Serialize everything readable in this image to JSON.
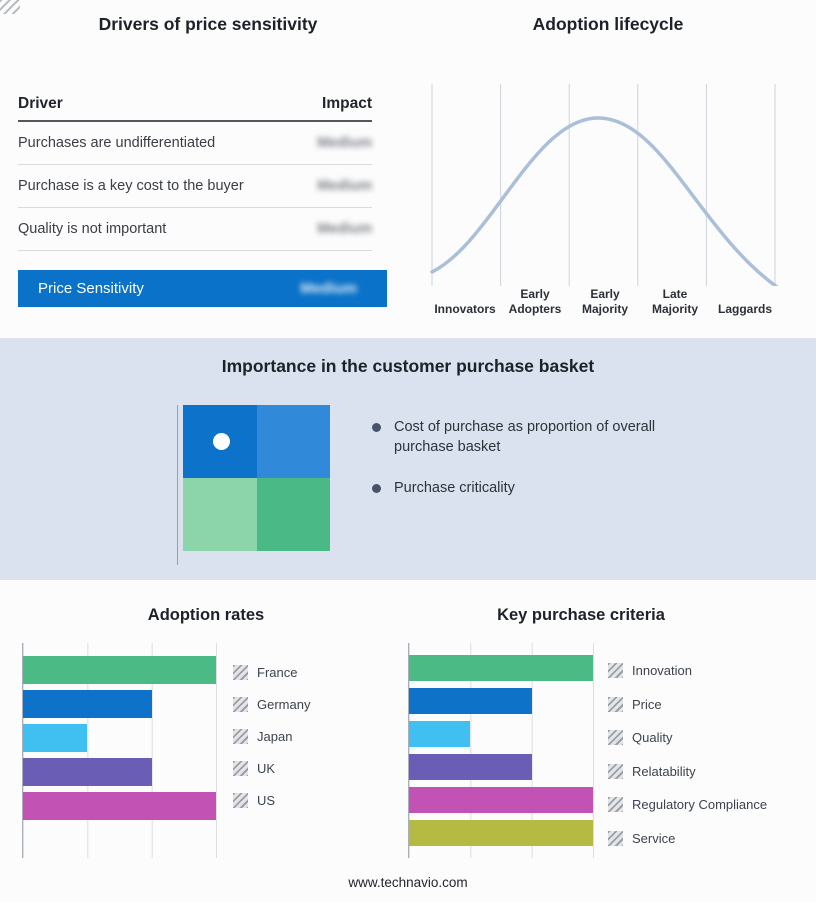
{
  "meta": {
    "footer": "www.technavio.com"
  },
  "drivers_panel": {
    "title": "Drivers of price sensitivity",
    "col_driver": "Driver",
    "col_impact": "Impact",
    "rows": [
      {
        "driver": "Purchases are undifferentiated",
        "impact": "Medium",
        "redacted": true
      },
      {
        "driver": "Purchase is a key cost to the buyer",
        "impact": "Medium",
        "redacted": true
      },
      {
        "driver": "Quality is not important",
        "impact": "Medium",
        "redacted": true
      }
    ],
    "summary": {
      "label": "Price Sensitivity",
      "impact": "Medium",
      "redacted": true,
      "bg_color": "#0a72c8"
    }
  },
  "basket_panel": {
    "title": "Importance in the customer purchase basket",
    "band_color": "#d9e2ee",
    "matrix_colors": {
      "top_left": "#0d72c9",
      "top_right": "#318ad9",
      "bottom_left": "#8cd5ab",
      "bottom_right": "#4bb985"
    },
    "marker_quadrant": "top_left",
    "bullets": [
      "Cost of purchase as proportion of overall purchase basket",
      "Purchase criticality"
    ]
  },
  "chart_data": [
    {
      "id": "adoption_lifecycle",
      "type": "line",
      "title": "Adoption lifecycle",
      "categories": [
        "Innovators",
        "Early Adopters",
        "Early Majority",
        "Late Majority",
        "Laggards"
      ],
      "description": "Bell-shaped adoption curve rising from Innovators, peaking around Early Majority, falling to Laggards",
      "curve_color": "#abbfd9",
      "grid": "vertical segment boundaries, no numeric axes"
    },
    {
      "id": "adoption_rates",
      "type": "bar",
      "title": "Adoption rates",
      "orientation": "horizontal",
      "categories": [
        "France",
        "Germany",
        "Japan",
        "UK",
        "US"
      ],
      "values": [
        3,
        2,
        1,
        2,
        3
      ],
      "xlim": [
        0,
        3
      ],
      "unit": "relative gridline units (axis unlabeled)",
      "colors": [
        "#4cba85",
        "#0e72c8",
        "#3fc0f0",
        "#6a5db6",
        "#c253b4"
      ],
      "legend_position": "right",
      "grid": true
    },
    {
      "id": "key_purchase_criteria",
      "type": "bar",
      "title": "Key purchase criteria",
      "orientation": "horizontal",
      "categories": [
        "Innovation",
        "Price",
        "Quality",
        "Relatability",
        "Regulatory Compliance",
        "Service"
      ],
      "values": [
        3,
        2,
        1,
        2,
        3,
        3
      ],
      "xlim": [
        0,
        3
      ],
      "unit": "relative gridline units (axis unlabeled)",
      "colors": [
        "#4cba85",
        "#0e72c8",
        "#3fc0f0",
        "#6a5db6",
        "#c253b4",
        "#b5ba42"
      ],
      "legend_position": "right",
      "grid": true
    },
    {
      "id": "purchase_basket_matrix",
      "type": "heatmap",
      "title": "Importance in the customer purchase basket",
      "grid_colors": [
        [
          "#0d72c9",
          "#318ad9"
        ],
        [
          "#8cd5ab",
          "#4bb985"
        ]
      ],
      "marker": "white dot in top-left quadrant"
    }
  ]
}
